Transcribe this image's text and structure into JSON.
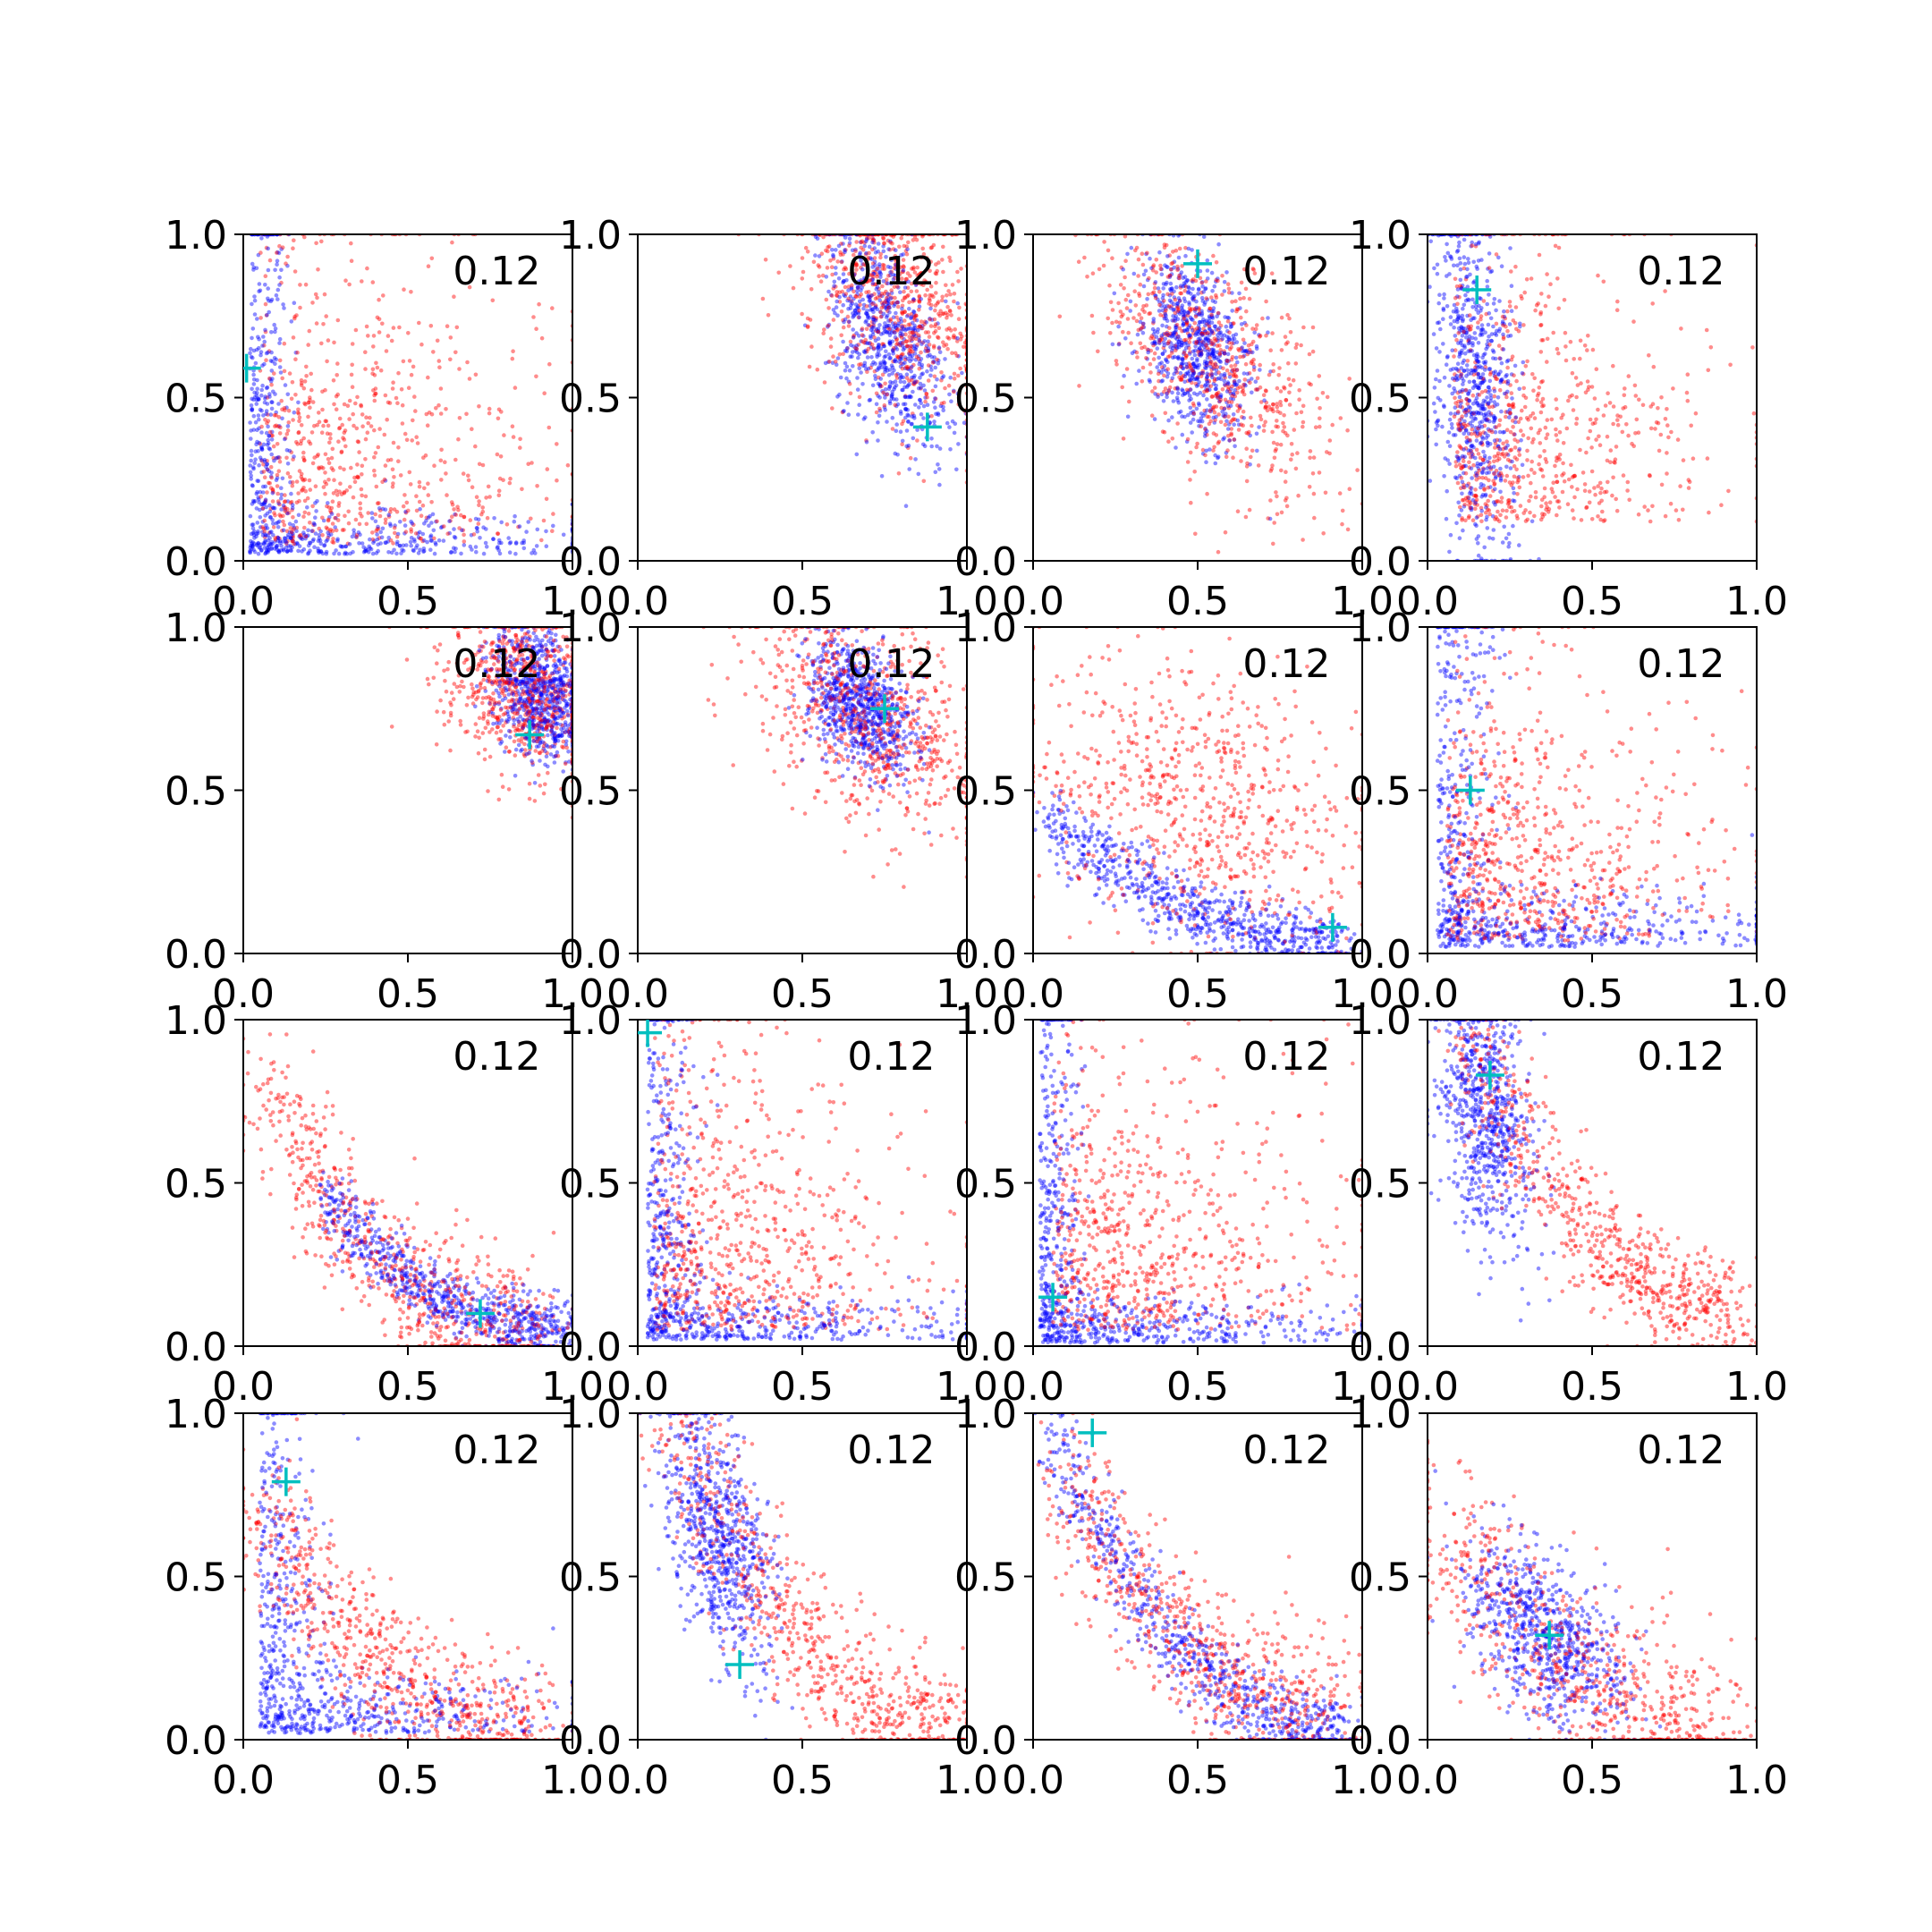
{
  "chart_data": {
    "type": "scatter",
    "layout": "4x4 grid of scatter subplots",
    "grid": false,
    "xlim": [
      0,
      1
    ],
    "ylim": [
      0,
      1
    ],
    "x_tick_labels": [
      "0.0",
      "0.5",
      "1.0"
    ],
    "y_tick_labels": [
      "0.0",
      "0.5",
      "1.0"
    ],
    "colors": {
      "series_a": "#ff0000",
      "series_b": "#0000ff",
      "marker": "#00bfbf"
    },
    "panels": [
      {
        "label": "0.12",
        "marker": [
          0.01,
          0.59
        ],
        "red": {
          "shape": "L",
          "cx": 0.05,
          "cy": 0.05,
          "sx": 0.42,
          "sy": 0.5,
          "t": 0.35
        },
        "blue": {
          "shape": "L",
          "cx": 0.02,
          "cy": 0.02,
          "sx": 0.5,
          "sy": 0.6,
          "t": 0.06
        }
      },
      {
        "label": "0.12",
        "marker": [
          0.88,
          0.41
        ],
        "red": {
          "shape": "blob",
          "cx": 0.78,
          "cy": 0.8,
          "sx": 0.14,
          "sy": 0.18,
          "r": -0.3
        },
        "blue": {
          "shape": "blob",
          "cx": 0.76,
          "cy": 0.68,
          "sx": 0.09,
          "sy": 0.17,
          "r": -0.5
        }
      },
      {
        "label": "0.12",
        "marker": [
          0.5,
          0.91
        ],
        "red": {
          "shape": "blob",
          "cx": 0.55,
          "cy": 0.6,
          "sx": 0.17,
          "sy": 0.2,
          "r": -0.55
        },
        "blue": {
          "shape": "blob",
          "cx": 0.49,
          "cy": 0.66,
          "sx": 0.09,
          "sy": 0.14,
          "r": -0.4
        }
      },
      {
        "label": "0.12",
        "marker": [
          0.15,
          0.83
        ],
        "red": {
          "shape": "L",
          "cx": 0.08,
          "cy": 0.12,
          "sx": 0.4,
          "sy": 0.5,
          "t": 0.28
        },
        "blue": {
          "shape": "blob",
          "cx": 0.14,
          "cy": 0.55,
          "sx": 0.06,
          "sy": 0.28,
          "r": -0.3
        }
      },
      {
        "label": "0.12",
        "marker": [
          0.87,
          0.67
        ],
        "red": {
          "shape": "blob",
          "cx": 0.85,
          "cy": 0.8,
          "sx": 0.12,
          "sy": 0.13,
          "r": -0.2
        },
        "blue": {
          "shape": "blob",
          "cx": 0.9,
          "cy": 0.8,
          "sx": 0.07,
          "sy": 0.1,
          "r": -0.3
        }
      },
      {
        "label": "0.12",
        "marker": [
          0.75,
          0.75
        ],
        "red": {
          "shape": "blob",
          "cx": 0.7,
          "cy": 0.72,
          "sx": 0.17,
          "sy": 0.17,
          "r": -0.4
        },
        "blue": {
          "shape": "blob",
          "cx": 0.68,
          "cy": 0.75,
          "sx": 0.08,
          "sy": 0.1,
          "r": -0.4
        }
      },
      {
        "label": "0.12",
        "marker": [
          0.91,
          0.08
        ],
        "red": {
          "shape": "blob",
          "cx": 0.5,
          "cy": 0.45,
          "sx": 0.24,
          "sy": 0.22,
          "r": -0.3
        },
        "blue": {
          "shape": "curve",
          "x0": 0.05,
          "x1": 0.95,
          "y0": 0.42,
          "y1": 0.04,
          "sp": 0.05
        }
      },
      {
        "label": "0.12",
        "marker": [
          0.13,
          0.5
        ],
        "red": {
          "shape": "L",
          "cx": 0.06,
          "cy": 0.04,
          "sx": 0.42,
          "sy": 0.45,
          "t": 0.3
        },
        "blue": {
          "shape": "L",
          "cx": 0.03,
          "cy": 0.02,
          "sx": 0.5,
          "sy": 0.7,
          "t": 0.08
        }
      },
      {
        "label": "0.12",
        "marker": [
          0.72,
          0.1
        ],
        "red": {
          "shape": "curve",
          "x0": 0.05,
          "x1": 0.9,
          "y0": 0.8,
          "y1": 0.05,
          "sp": 0.1
        },
        "blue": {
          "shape": "curve",
          "x0": 0.25,
          "x1": 1.0,
          "y0": 0.45,
          "y1": 0.05,
          "sp": 0.05
        }
      },
      {
        "label": "0.12",
        "marker": [
          0.03,
          0.96
        ],
        "red": {
          "shape": "L",
          "cx": 0.05,
          "cy": 0.05,
          "sx": 0.4,
          "sy": 0.5,
          "t": 0.3
        },
        "blue": {
          "shape": "L",
          "cx": 0.03,
          "cy": 0.02,
          "sx": 0.5,
          "sy": 0.6,
          "t": 0.07
        }
      },
      {
        "label": "0.12",
        "marker": [
          0.06,
          0.15
        ],
        "red": {
          "shape": "L",
          "cx": 0.06,
          "cy": 0.05,
          "sx": 0.42,
          "sy": 0.45,
          "t": 0.33
        },
        "blue": {
          "shape": "L",
          "cx": 0.02,
          "cy": 0.01,
          "sx": 0.5,
          "sy": 0.6,
          "t": 0.06
        }
      },
      {
        "label": "0.12",
        "marker": [
          0.19,
          0.83
        ],
        "red": {
          "shape": "curve",
          "x0": 0.12,
          "x1": 0.95,
          "y0": 0.95,
          "y1": 0.12,
          "sp": 0.09
        },
        "blue": {
          "shape": "blob",
          "cx": 0.18,
          "cy": 0.7,
          "sx": 0.07,
          "sy": 0.2,
          "r": -0.3
        }
      },
      {
        "label": "0.12",
        "marker": [
          0.13,
          0.79
        ],
        "red": {
          "shape": "curve",
          "x0": 0.05,
          "x1": 0.9,
          "y0": 0.7,
          "y1": 0.03,
          "sp": 0.1
        },
        "blue": {
          "shape": "L",
          "cx": 0.05,
          "cy": 0.02,
          "sx": 0.45,
          "sy": 0.6,
          "t": 0.09
        }
      },
      {
        "label": "0.12",
        "marker": [
          0.31,
          0.23
        ],
        "red": {
          "shape": "curve",
          "x0": 0.12,
          "x1": 0.98,
          "y0": 0.95,
          "y1": 0.05,
          "sp": 0.1
        },
        "blue": {
          "shape": "blob",
          "cx": 0.24,
          "cy": 0.62,
          "sx": 0.08,
          "sy": 0.2,
          "r": -0.5
        }
      },
      {
        "label": "0.12",
        "marker": [
          0.18,
          0.94
        ],
        "red": {
          "shape": "curve",
          "x0": 0.1,
          "x1": 0.95,
          "y0": 0.8,
          "y1": 0.1,
          "sp": 0.11
        },
        "blue": {
          "shape": "curve",
          "x0": 0.05,
          "x1": 0.95,
          "y0": 0.95,
          "y1": 0.03,
          "sp": 0.06
        }
      },
      {
        "label": "0.12",
        "marker": [
          0.37,
          0.32
        ],
        "red": {
          "shape": "curve",
          "x0": 0.02,
          "x1": 0.9,
          "y0": 0.7,
          "y1": 0.05,
          "sp": 0.13
        },
        "blue": {
          "shape": "blob",
          "cx": 0.35,
          "cy": 0.33,
          "sx": 0.12,
          "sy": 0.14,
          "r": -0.5
        }
      }
    ]
  }
}
